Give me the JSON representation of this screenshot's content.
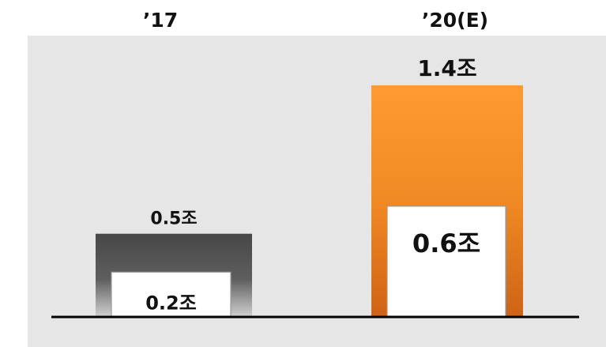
{
  "chart_data": {
    "type": "bar",
    "categories": [
      "’17",
      "’20(E)"
    ],
    "series": [
      {
        "values": [
          0.5,
          1.4
        ],
        "labels": [
          "0.5조",
          "1.4조"
        ]
      },
      {
        "values": [
          0.2,
          0.6
        ],
        "labels": [
          "0.2조",
          "0.6조"
        ]
      }
    ],
    "colors": {
      "plot_background": "#e6e6e6",
      "bar_17": "#555555",
      "bar_20": "#f28a22",
      "inner_box": "#ffffff",
      "baseline": "#000000"
    },
    "ylim": [
      0,
      1.4
    ],
    "grid": false,
    "legend": "none"
  }
}
